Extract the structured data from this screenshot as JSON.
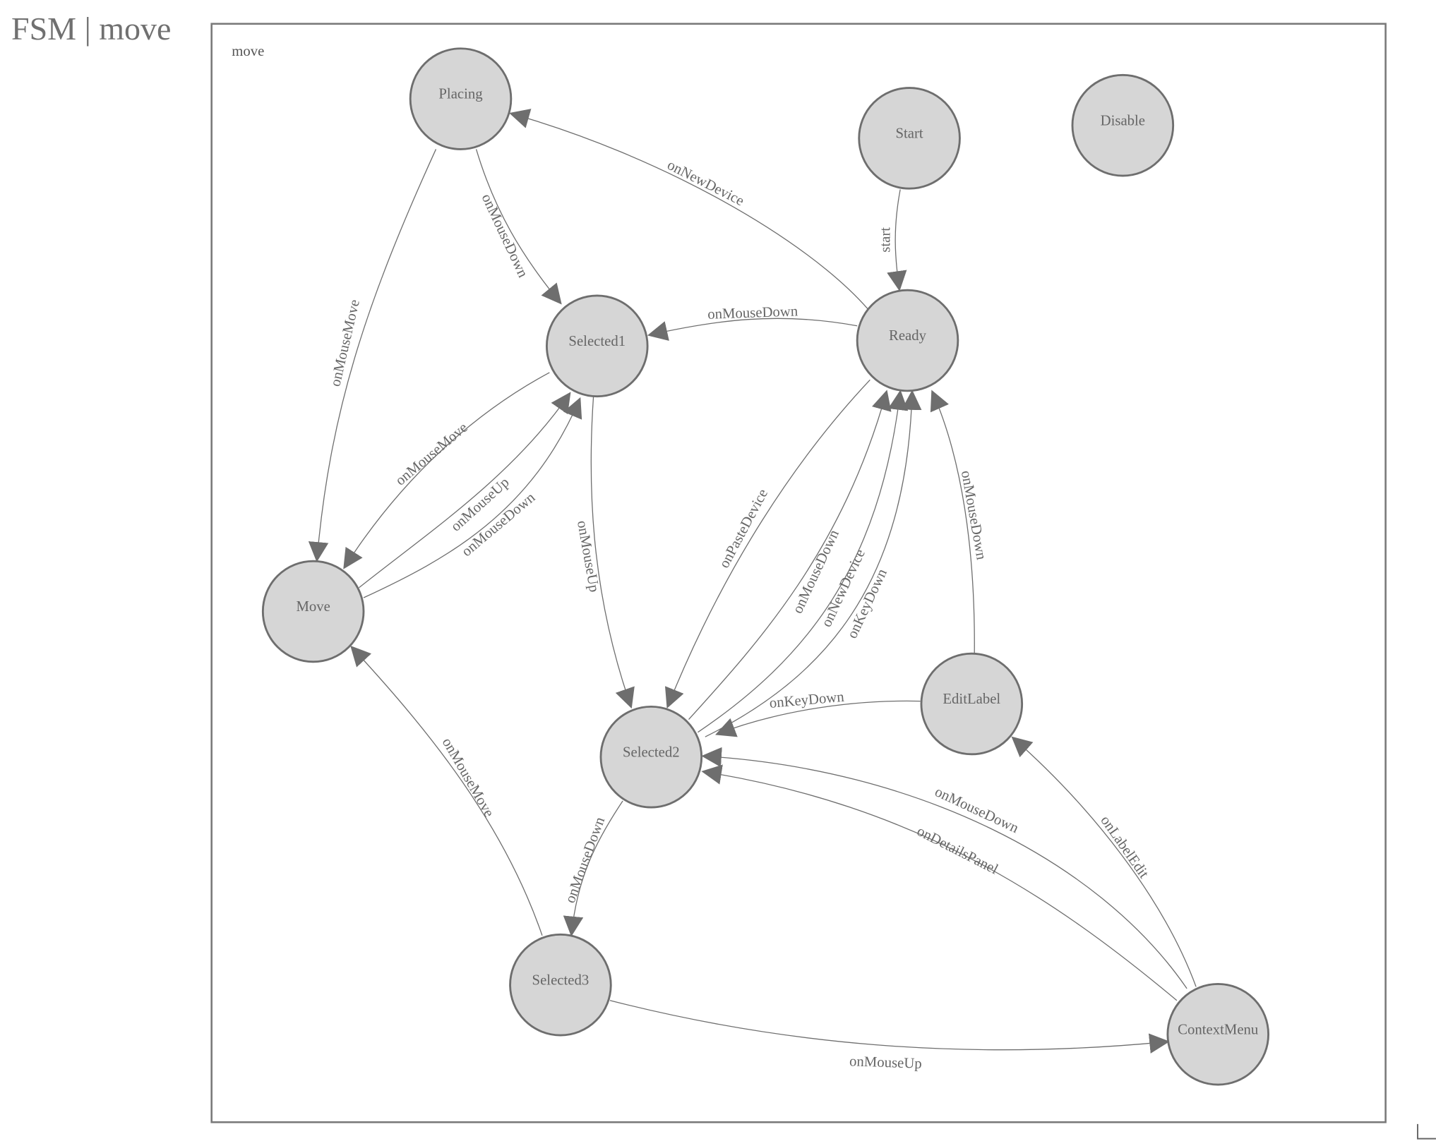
{
  "title": "FSM | move",
  "diagram": {
    "group_label": "move",
    "colors": {
      "node_fill": "#d6d6d6",
      "stroke": "#6e6e6e",
      "text": "#666666"
    },
    "nodes": [
      "Placing",
      "Start",
      "Disable",
      "Selected1",
      "Ready",
      "Move",
      "EditLabel",
      "Selected2",
      "Selected3",
      "ContextMenu"
    ],
    "edges": [
      {
        "from": "Start",
        "to": "Ready",
        "label": "start"
      },
      {
        "from": "Ready",
        "to": "Placing",
        "label": "onNewDevice"
      },
      {
        "from": "Placing",
        "to": "Selected1",
        "label": "onMouseDown"
      },
      {
        "from": "Placing",
        "to": "Move",
        "label": "onMouseMove"
      },
      {
        "from": "Ready",
        "to": "Selected1",
        "label": "onMouseDown"
      },
      {
        "from": "Selected1",
        "to": "Move",
        "label": "onMouseMove"
      },
      {
        "from": "Move",
        "to": "Selected1",
        "label": "onMouseUp"
      },
      {
        "from": "Move",
        "to": "Selected1",
        "label": "onMouseDown"
      },
      {
        "from": "Selected1",
        "to": "Selected2",
        "label": "onMouseUp"
      },
      {
        "from": "Ready",
        "to": "Selected2",
        "label": "onPasteDevice"
      },
      {
        "from": "Selected2",
        "to": "Ready",
        "label": "onMouseDown"
      },
      {
        "from": "Selected2",
        "to": "Ready",
        "label": "onNewDevice"
      },
      {
        "from": "Selected2",
        "to": "Ready",
        "label": "onKeyDown"
      },
      {
        "from": "EditLabel",
        "to": "Ready",
        "label": "onMouseDown"
      },
      {
        "from": "EditLabel",
        "to": "Selected2",
        "label": "onKeyDown"
      },
      {
        "from": "ContextMenu",
        "to": "Selected2",
        "label": "onMouseDown"
      },
      {
        "from": "ContextMenu",
        "to": "Selected2",
        "label": "onDetailsPanel"
      },
      {
        "from": "ContextMenu",
        "to": "EditLabel",
        "label": "onLabelEdit"
      },
      {
        "from": "Selected2",
        "to": "Selected3",
        "label": "onMouseDown"
      },
      {
        "from": "Selected3",
        "to": "Move",
        "label": "onMouseMove"
      },
      {
        "from": "Selected3",
        "to": "ContextMenu",
        "label": "onMouseUp"
      }
    ]
  }
}
